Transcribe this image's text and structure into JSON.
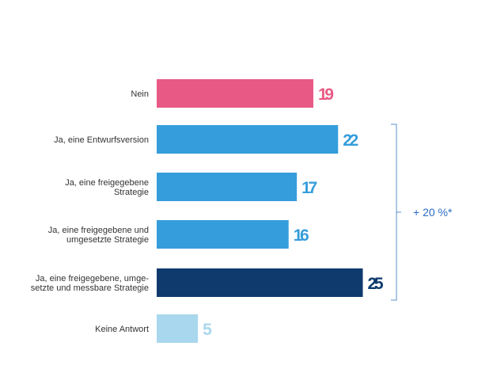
{
  "chart_data": {
    "type": "bar",
    "orientation": "horizontal",
    "categories": [
      [
        "Nein"
      ],
      [
        "Ja, eine Entwurfsversion"
      ],
      [
        "Ja, eine freigegebene",
        "Strategie"
      ],
      [
        "Ja, eine freigegebene und",
        "umgesetzte Strategie"
      ],
      [
        "Ja, eine freigegebene, umge-",
        "setzte und messbare Strategie"
      ],
      [
        "Keine Antwort"
      ]
    ],
    "values": [
      19,
      22,
      17,
      16,
      25,
      5
    ],
    "data_labels": [
      "19",
      "22",
      "17",
      "16",
      "25",
      "5"
    ],
    "colors": [
      "#e85a85",
      "#359ddc",
      "#359ddc",
      "#359ddc",
      "#0e3a6e",
      "#a9d8ee"
    ],
    "xlim": [
      0,
      25
    ],
    "grid": false,
    "annotation": {
      "text": "+ 20 %*",
      "spans_categories": [
        1,
        4
      ],
      "color": "#2b6cc4"
    }
  }
}
